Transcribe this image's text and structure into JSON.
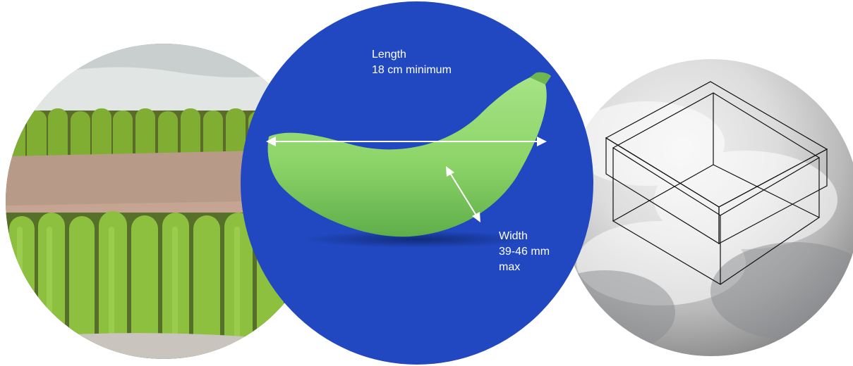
{
  "center": {
    "length": {
      "title": "Length",
      "value": "18 cm minimum"
    },
    "width": {
      "line1": "Width",
      "line2": "39-46 mm",
      "line3": "max"
    }
  },
  "colors": {
    "disc_blue": "#2148c0",
    "banana_green": "#8fd66a",
    "arrow": "#ffffff"
  },
  "images": {
    "left": "photo of boxed green bananas",
    "right": "wireframe box over cloudy sky"
  }
}
